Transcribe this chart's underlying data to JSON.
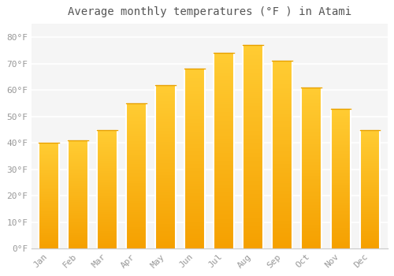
{
  "title": "Average monthly temperatures (°F ) in Atami",
  "months": [
    "Jan",
    "Feb",
    "Mar",
    "Apr",
    "May",
    "Jun",
    "Jul",
    "Aug",
    "Sep",
    "Oct",
    "Nov",
    "Dec"
  ],
  "values": [
    40,
    41,
    45,
    55,
    62,
    68,
    74,
    77,
    71,
    61,
    53,
    45
  ],
  "bar_color_top": "#FFBB33",
  "bar_color_bottom": "#F5A000",
  "background_color": "#FFFFFF",
  "plot_bg_color": "#F5F5F5",
  "grid_color": "#FFFFFF",
  "yticks": [
    0,
    10,
    20,
    30,
    40,
    50,
    60,
    70,
    80
  ],
  "ylim": [
    0,
    85
  ],
  "title_fontsize": 10,
  "tick_fontsize": 8,
  "tick_color": "#999999",
  "title_color": "#555555",
  "bar_width": 0.7,
  "spine_color": "#CCCCCC"
}
